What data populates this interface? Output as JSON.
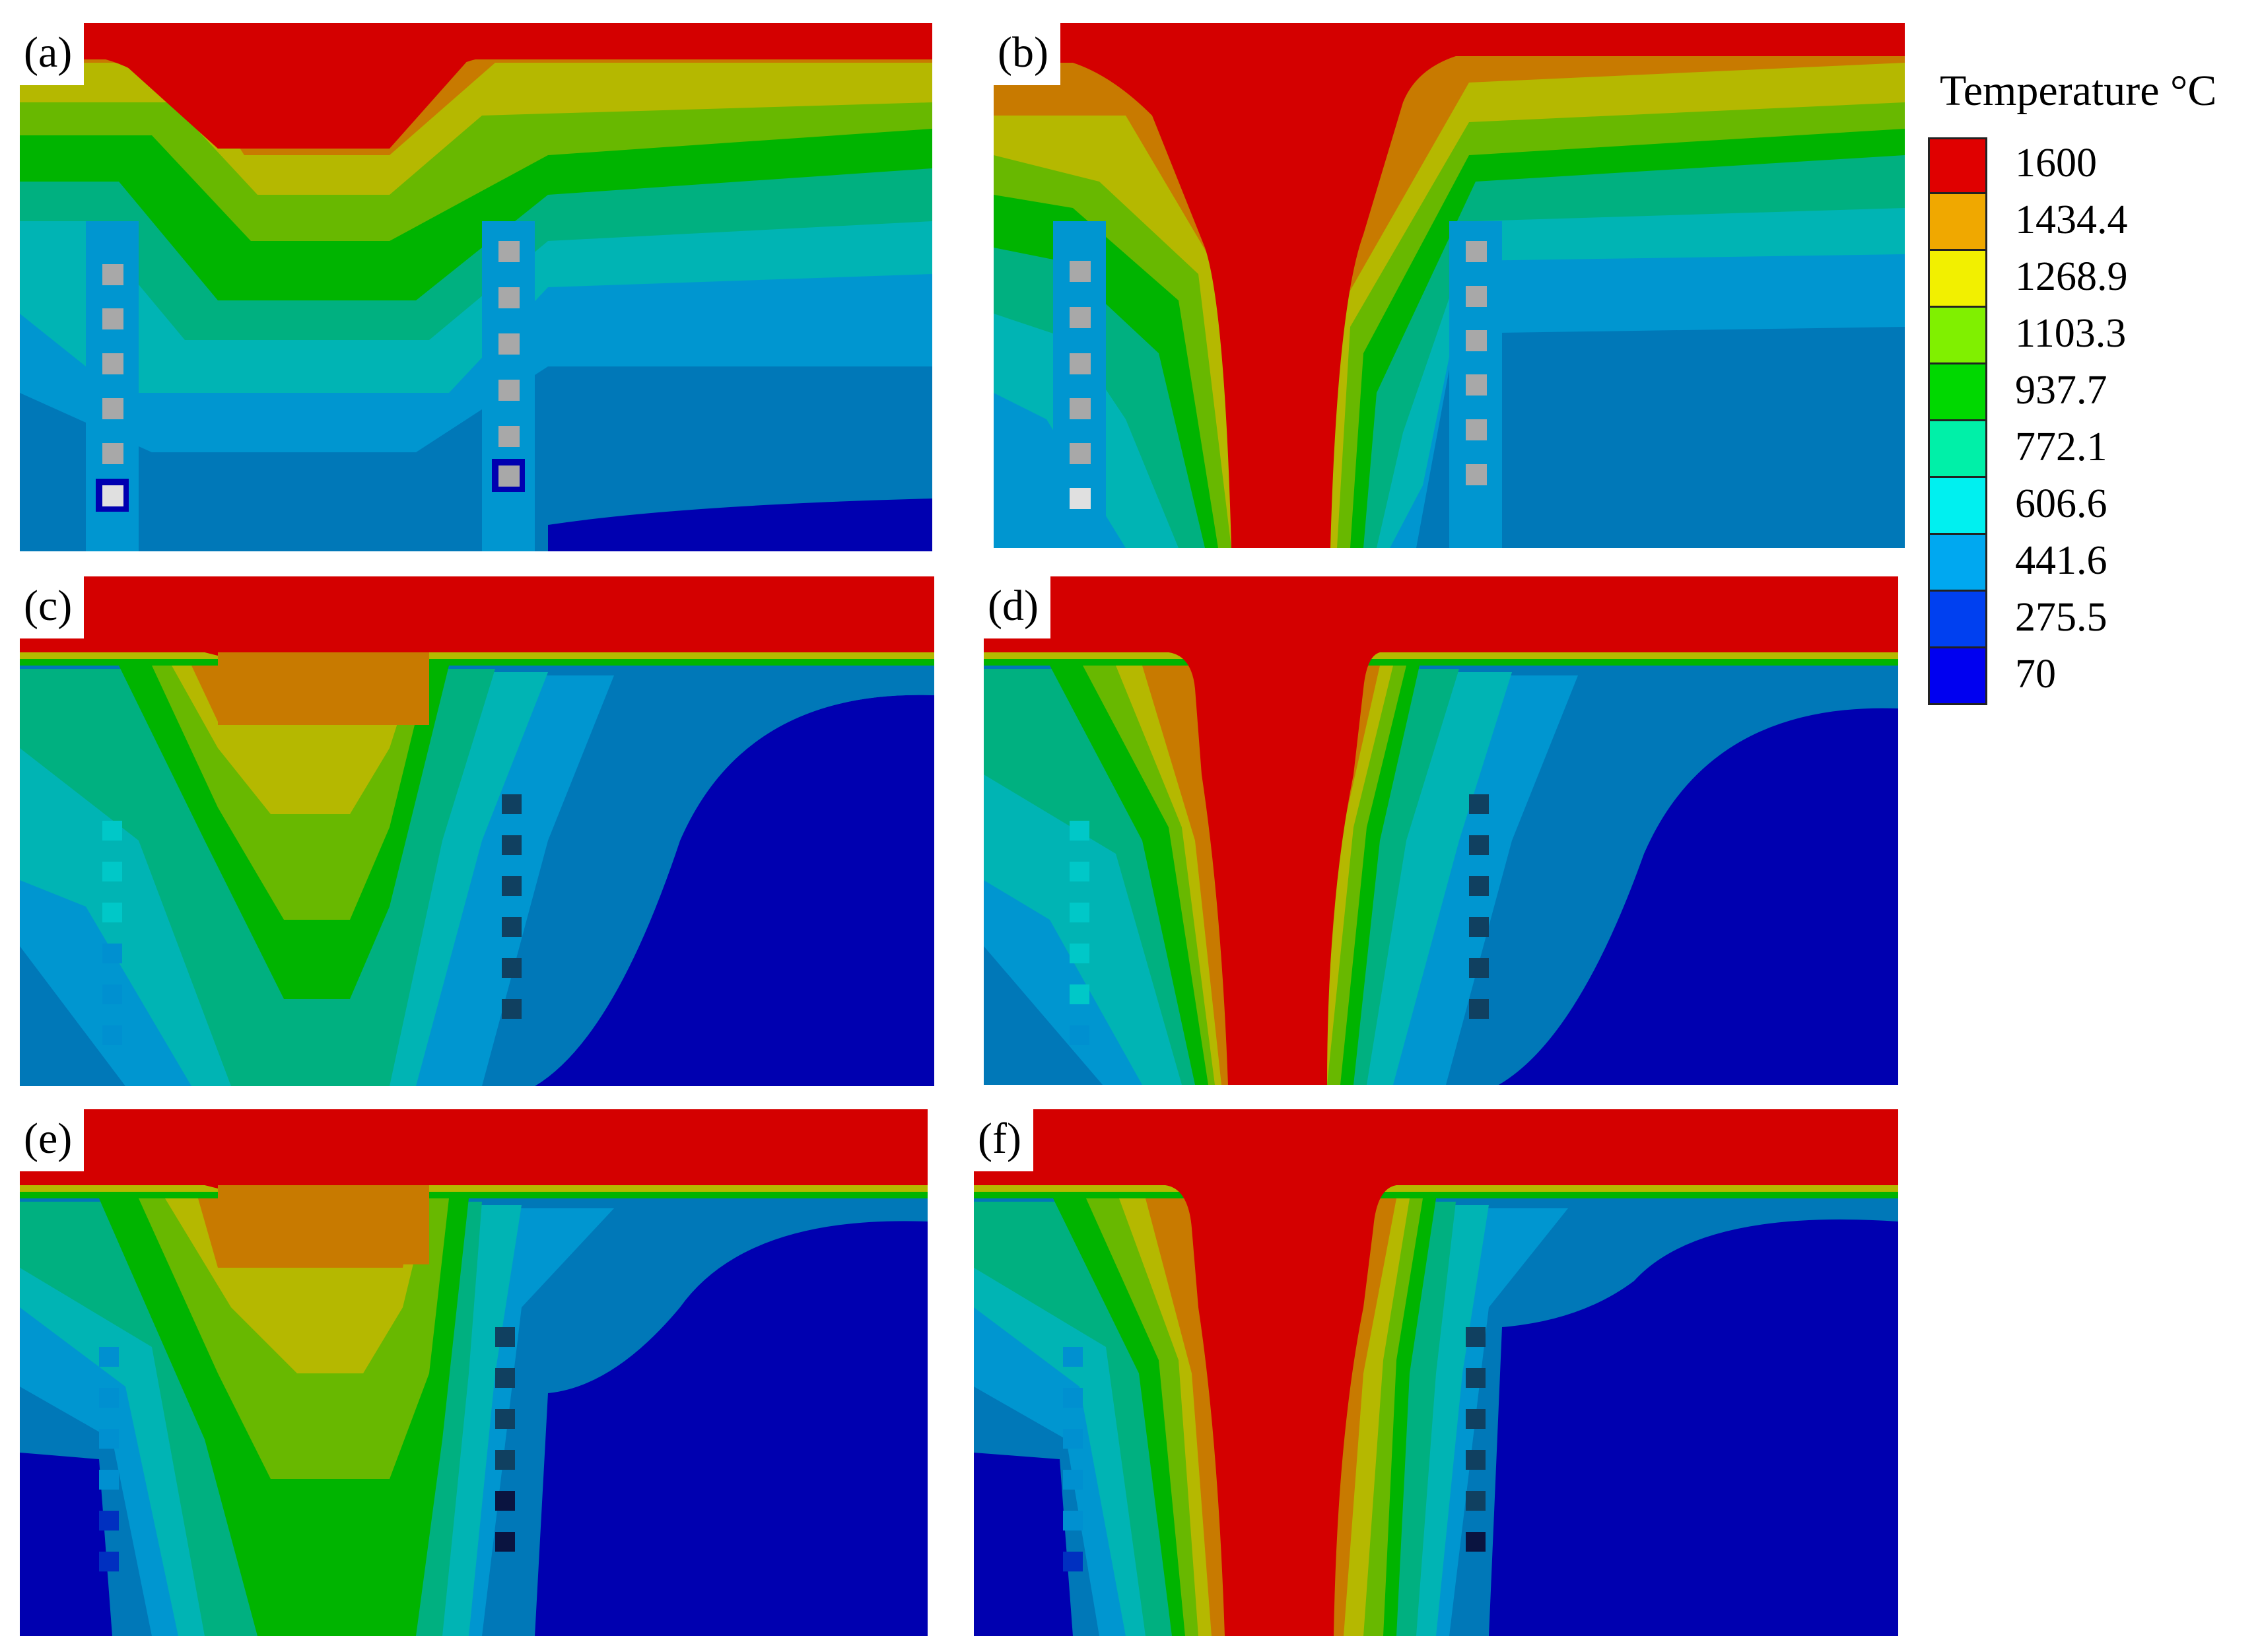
{
  "legend": {
    "title": "Temperature °C",
    "entries": [
      {
        "label": "1600",
        "color": "#e00000"
      },
      {
        "label": "1434.4",
        "color": "#f0a800"
      },
      {
        "label": "1268.9",
        "color": "#f2f000"
      },
      {
        "label": "1103.3",
        "color": "#80f000"
      },
      {
        "label": "937.7",
        "color": "#00d800"
      },
      {
        "label": "772.1",
        "color": "#00f0a8"
      },
      {
        "label": "606.6",
        "color": "#00f0f0"
      },
      {
        "label": "441.6",
        "color": "#00a8f0"
      },
      {
        "label": "275.5",
        "color": "#0040f0"
      },
      {
        "label": "70",
        "color": "#0000f0"
      }
    ]
  },
  "panels": [
    {
      "label": "(a)"
    },
    {
      "label": "(b)"
    },
    {
      "label": "(c)"
    },
    {
      "label": "(d)"
    },
    {
      "label": "(e)"
    },
    {
      "label": "(f)"
    }
  ],
  "colors": {
    "red": "#d40000",
    "orange": "#c87a00",
    "olive": "#b5b800",
    "lime": "#68b800",
    "green": "#00b400",
    "teal": "#00b080",
    "cyan": "#00b4b4",
    "lightblue": "#0096d0",
    "blue": "#0078b8",
    "navy": "#0000b0"
  }
}
